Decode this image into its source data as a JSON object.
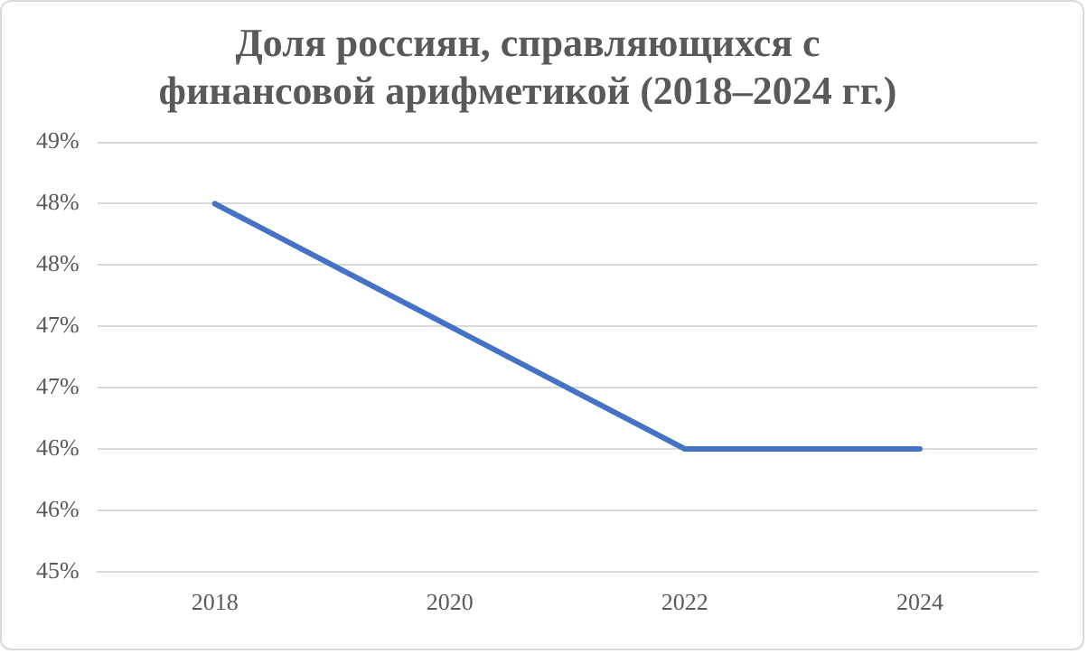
{
  "chart_data": {
    "type": "line",
    "title": [
      "Доля россиян, справляющихся с",
      "финансовой арифметикой (2018–2024 гг.)"
    ],
    "categories": [
      "2018",
      "2020",
      "2022",
      "2024"
    ],
    "series": [
      {
        "color": "#4472c4",
        "values": [
          48,
          47,
          46,
          46
        ]
      }
    ],
    "ylim": [
      45,
      48.5
    ],
    "yticks": [
      {
        "value": 45,
        "label": "45%"
      },
      {
        "value": 45.5,
        "label": "46%"
      },
      {
        "value": 46,
        "label": "46%"
      },
      {
        "value": 46.5,
        "label": "47%"
      },
      {
        "value": 47,
        "label": "47%"
      },
      {
        "value": 47.5,
        "label": "48%"
      },
      {
        "value": 48,
        "label": "48%"
      },
      {
        "value": 48.5,
        "label": "49%"
      }
    ],
    "grid": "y",
    "legend": false,
    "marker": "none",
    "line_style": "solid"
  }
}
